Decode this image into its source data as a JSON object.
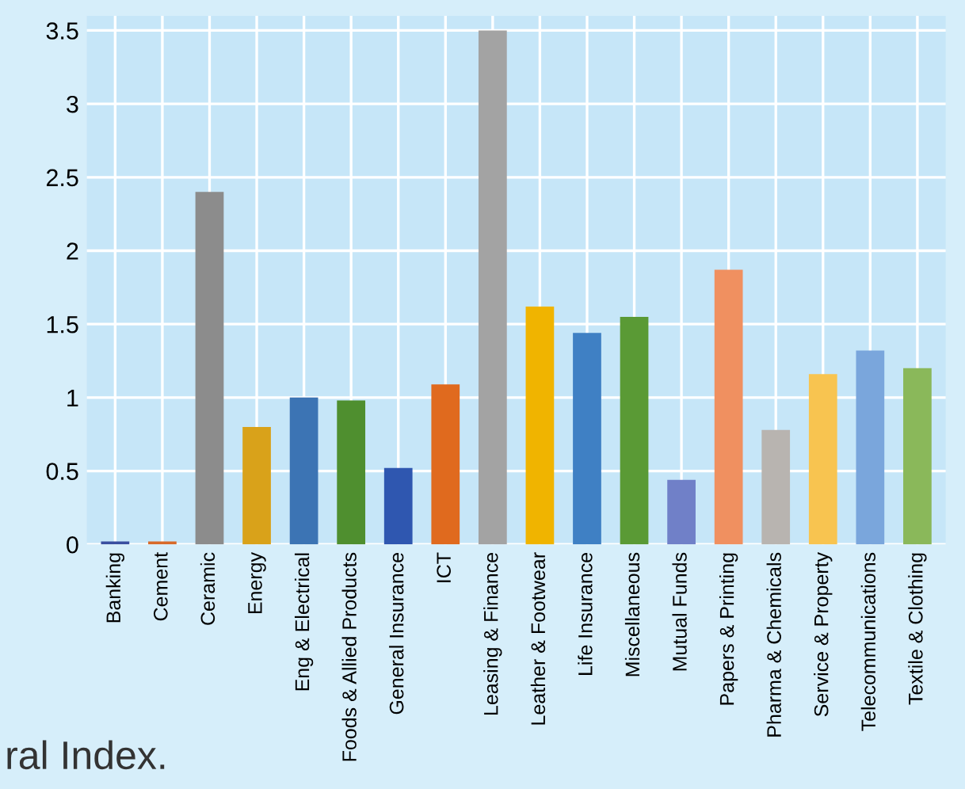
{
  "chart_data": {
    "type": "bar",
    "categories": [
      "Banking",
      "Cement",
      "Ceramic",
      "Energy",
      "Eng & Electrical",
      "Foods & Allied Products",
      "General Insurance",
      "ICT",
      "Leasing & Finance",
      "Leather & Footwear",
      "Life Insurance",
      "Miscellaneous",
      "Mutual Funds",
      "Papers & Printing",
      "Pharma & Chemicals",
      "Service & Property",
      "Telecommunications",
      "Textile & Clothing"
    ],
    "values": [
      0.02,
      0.02,
      2.4,
      0.8,
      1.0,
      0.98,
      0.52,
      1.09,
      3.5,
      1.62,
      1.44,
      1.55,
      0.44,
      1.87,
      0.78,
      1.16,
      1.32,
      1.2
    ],
    "colors": [
      "#3a4fa0",
      "#d86a2a",
      "#8c8c8c",
      "#d9a21a",
      "#3c74b4",
      "#4f8f2f",
      "#2f57b0",
      "#e06a1e",
      "#a3a3a3",
      "#f0b400",
      "#3f80c4",
      "#5a9a35",
      "#7080c8",
      "#f09060",
      "#b8b4b0",
      "#f8c450",
      "#7aa6dc",
      "#8ab85a"
    ],
    "ylim": [
      0,
      3.6
    ],
    "yticks": [
      0,
      0.5,
      1,
      1.5,
      2,
      2.5,
      3,
      3.5
    ],
    "grid": true,
    "annotations": [
      "ral Index."
    ]
  }
}
